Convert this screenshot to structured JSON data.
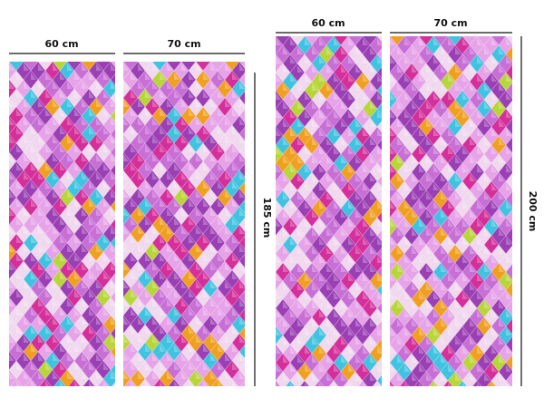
{
  "product_set_left": {
    "panel_1_width": "60 cm",
    "panel_2_width": "70 cm",
    "height": "185 cm"
  },
  "product_set_right": {
    "panel_1_width": "60 cm",
    "panel_2_width": "70 cm",
    "height": "200 cm"
  },
  "pattern": {
    "name": "colorful-scales-pattern",
    "colors": [
      "#9b3fb5",
      "#c86fd6",
      "#e6a3e8",
      "#f0d8ee",
      "#3fc3e0",
      "#f0a020",
      "#b8d63a",
      "#d42f9a"
    ]
  }
}
